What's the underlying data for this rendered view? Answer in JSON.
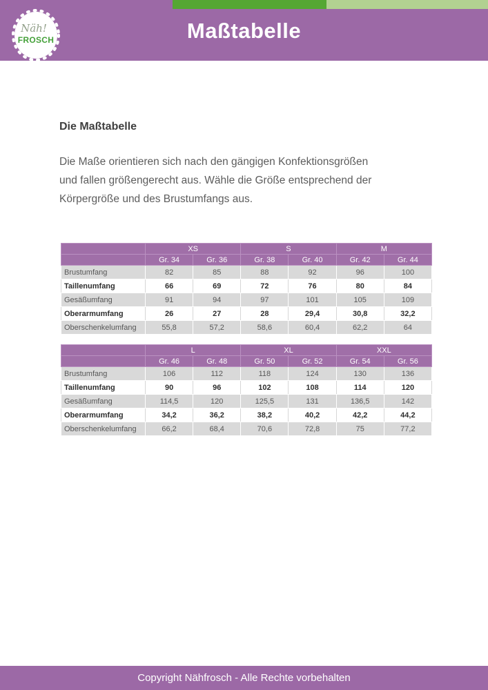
{
  "header": {
    "title": "Maßtabelle",
    "logo": {
      "script": "Näh!",
      "name": "FROSCH"
    }
  },
  "intro": {
    "heading": "Die Maßtabelle",
    "lines": [
      "Die Maße orientieren sich nach den gängigen Konfektionsgrößen",
      "und fallen größengerecht aus. Wähle die Größe entsprechend der",
      "Körpergröße und des Brustumfangs aus."
    ]
  },
  "tables": [
    {
      "name": "sizes-xs-s-m",
      "groups": [
        {
          "label": "XS"
        },
        {
          "label": "S"
        },
        {
          "label": "M"
        }
      ],
      "columns": [
        "Gr. 34",
        "Gr. 36",
        "Gr. 38",
        "Gr. 40",
        "Gr. 42",
        "Gr. 44"
      ],
      "rows": [
        {
          "label": "Brustumfang",
          "bold": false,
          "values": [
            "82",
            "85",
            "88",
            "92",
            "96",
            "100"
          ]
        },
        {
          "label": "Taillenumfang",
          "bold": true,
          "values": [
            "66",
            "69",
            "72",
            "76",
            "80",
            "84"
          ]
        },
        {
          "label": "Gesäßumfang",
          "bold": false,
          "values": [
            "91",
            "94",
            "97",
            "101",
            "105",
            "109"
          ]
        },
        {
          "label": "Oberarmumfang",
          "bold": true,
          "values": [
            "26",
            "27",
            "28",
            "29,4",
            "30,8",
            "32,2"
          ]
        },
        {
          "label": "Oberschenkelumfang",
          "bold": false,
          "values": [
            "55,8",
            "57,2",
            "58,6",
            "60,4",
            "62,2",
            "64"
          ]
        }
      ]
    },
    {
      "name": "sizes-l-xl-xxl",
      "groups": [
        {
          "label": "L"
        },
        {
          "label": "XL"
        },
        {
          "label": "XXL"
        }
      ],
      "columns": [
        "Gr. 46",
        "Gr. 48",
        "Gr. 50",
        "Gr. 52",
        "Gr. 54",
        "Gr. 56"
      ],
      "rows": [
        {
          "label": "Brustumfang",
          "bold": false,
          "values": [
            "106",
            "112",
            "118",
            "124",
            "130",
            "136"
          ]
        },
        {
          "label": "Taillenumfang",
          "bold": true,
          "values": [
            "90",
            "96",
            "102",
            "108",
            "114",
            "120"
          ]
        },
        {
          "label": "Gesäßumfang",
          "bold": false,
          "values": [
            "114,5",
            "120",
            "125,5",
            "131",
            "136,5",
            "142"
          ]
        },
        {
          "label": "Oberarmumfang",
          "bold": true,
          "values": [
            "34,2",
            "36,2",
            "38,2",
            "40,2",
            "42,2",
            "44,2"
          ]
        },
        {
          "label": "Oberschenkelumfang",
          "bold": false,
          "values": [
            "66,2",
            "68,4",
            "70,6",
            "72,8",
            "75",
            "77,2"
          ]
        }
      ]
    }
  ],
  "footer": {
    "text": "Copyright Nähfrosch - Alle Rechte vorbehalten"
  },
  "colors": {
    "purple": "#9c69a6",
    "table_header_purple": "#a06fa8",
    "green_dark": "#55a733",
    "green_light": "#b2d191",
    "row_gray": "#d9d9d9",
    "logo_green": "#45a13a"
  }
}
